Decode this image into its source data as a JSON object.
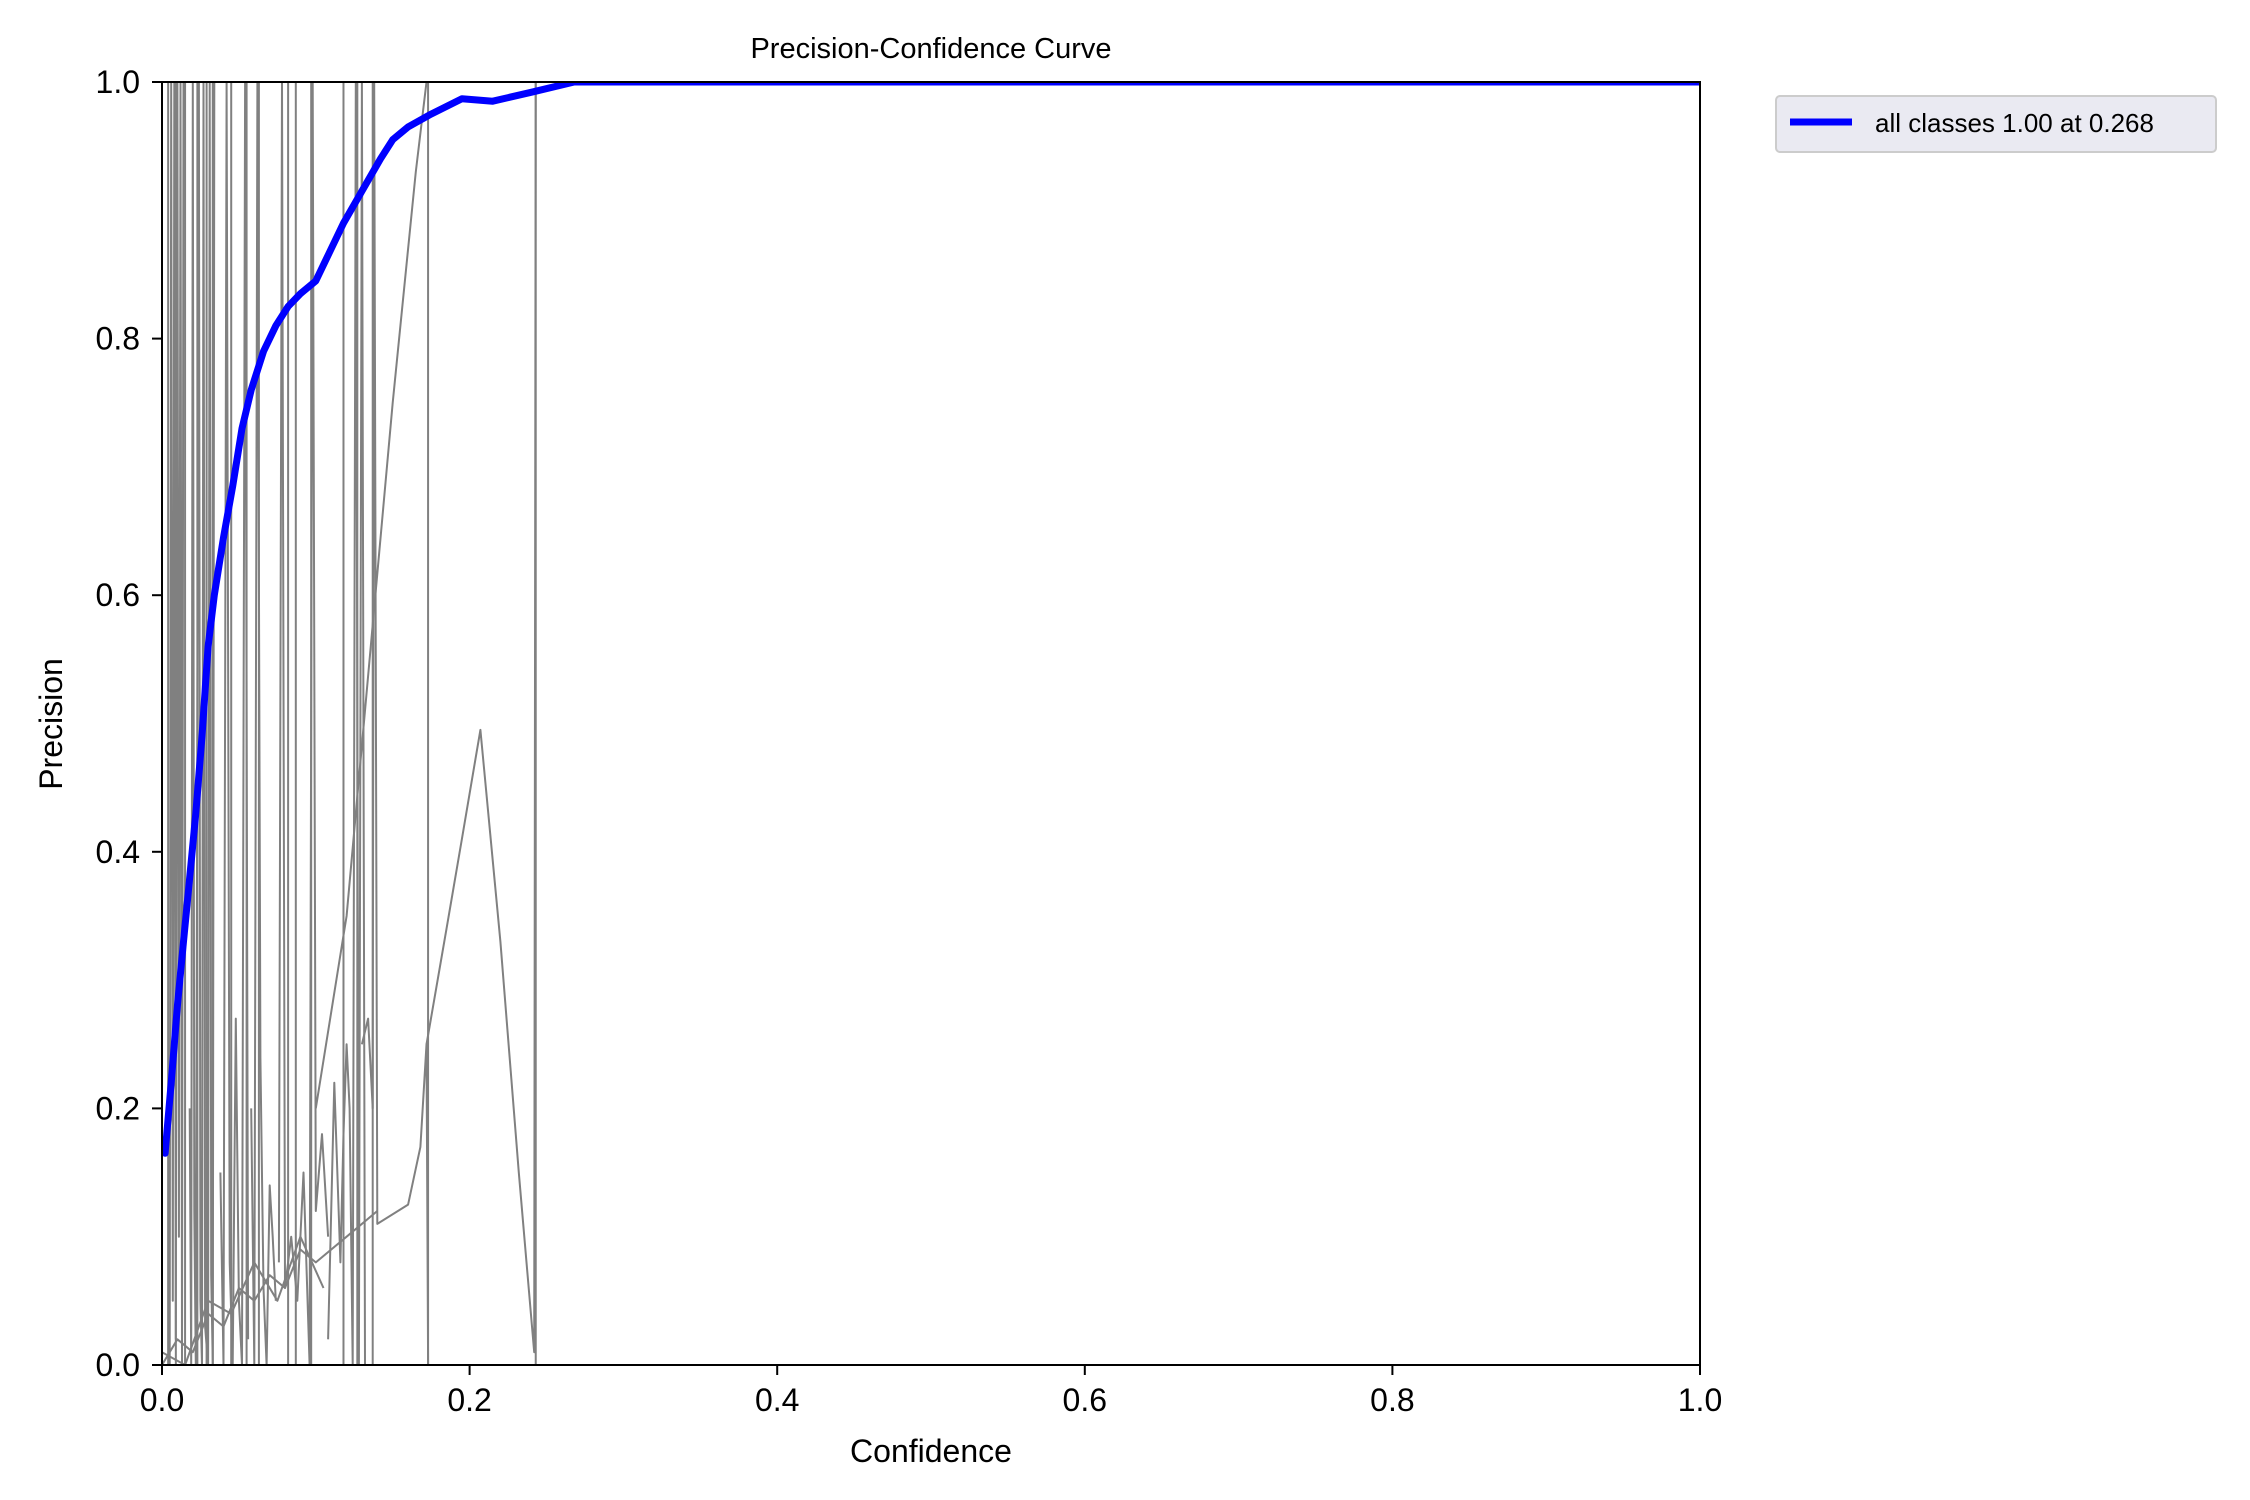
{
  "chart_data": {
    "type": "line",
    "title": "Precision-Confidence Curve",
    "xlabel": "Confidence",
    "ylabel": "Precision",
    "xlim": [
      0.0,
      1.0
    ],
    "ylim": [
      0.0,
      1.0
    ],
    "xticks": [
      "0.0",
      "0.2",
      "0.4",
      "0.6",
      "0.8",
      "1.0"
    ],
    "yticks": [
      "0.0",
      "0.2",
      "0.4",
      "0.6",
      "0.8",
      "1.0"
    ],
    "grid": false,
    "legend_position": "outside-top-right",
    "colors": {
      "all_classes": "#0000ff",
      "per_class": "#808080"
    },
    "series": [
      {
        "name": "all classes 1.00 at 0.268",
        "color": "#0000ff",
        "x": [
          0.002,
          0.006,
          0.01,
          0.014,
          0.018,
          0.022,
          0.026,
          0.03,
          0.034,
          0.04,
          0.046,
          0.052,
          0.058,
          0.066,
          0.074,
          0.082,
          0.09,
          0.1,
          0.108,
          0.118,
          0.13,
          0.142,
          0.15,
          0.16,
          0.175,
          0.195,
          0.215,
          0.24,
          0.268,
          0.4,
          0.6,
          0.8,
          1.0
        ],
        "y": [
          0.165,
          0.22,
          0.28,
          0.33,
          0.38,
          0.43,
          0.49,
          0.56,
          0.6,
          0.645,
          0.685,
          0.73,
          0.76,
          0.79,
          0.81,
          0.825,
          0.835,
          0.845,
          0.865,
          0.89,
          0.915,
          0.94,
          0.955,
          0.965,
          0.975,
          0.987,
          0.985,
          0.992,
          1.0,
          1.0,
          1.0,
          1.0,
          1.0
        ]
      },
      {
        "name": "",
        "color": "#808080",
        "x": [
          0.005,
          0.006,
          0.007,
          0.008,
          0.009,
          0.01,
          0.011,
          0.012,
          0.013,
          0.014
        ],
        "y": [
          0.0,
          1.0,
          0.05,
          1.0,
          0.02,
          1.0,
          0.1,
          1.0,
          0.0,
          1.0
        ]
      },
      {
        "name": "",
        "color": "#808080",
        "x": [
          0.018,
          0.019,
          0.02,
          0.021,
          0.022,
          0.024,
          0.025,
          0.026,
          0.027,
          0.028,
          0.03,
          0.031,
          0.032,
          0.033,
          0.034
        ],
        "y": [
          0.2,
          0.0,
          1.0,
          0.12,
          0.0,
          1.0,
          0.05,
          0.0,
          1.0,
          0.03,
          0.0,
          1.0,
          0.07,
          0.0,
          1.0
        ]
      },
      {
        "name": "",
        "color": "#808080",
        "x": [
          0.038,
          0.04,
          0.042,
          0.044,
          0.046,
          0.048,
          0.05,
          0.052,
          0.054,
          0.056
        ],
        "y": [
          0.15,
          0.0,
          1.0,
          0.08,
          0.0,
          0.27,
          0.05,
          0.0,
          1.0,
          0.02
        ]
      },
      {
        "name": "",
        "color": "#808080",
        "x": [
          0.058,
          0.06,
          0.062,
          0.064,
          0.066,
          0.068,
          0.07,
          0.072,
          0.074
        ],
        "y": [
          0.2,
          0.0,
          1.0,
          0.24,
          0.06,
          0.0,
          0.14,
          0.1,
          0.05
        ]
      },
      {
        "name": "",
        "color": "#808080",
        "x": [
          0.076,
          0.078,
          0.08,
          0.084,
          0.088,
          0.092,
          0.096,
          0.098,
          0.1,
          0.104,
          0.108
        ],
        "y": [
          0.08,
          1.0,
          0.06,
          0.1,
          0.05,
          0.15,
          0.0,
          1.0,
          0.12,
          0.18,
          0.1
        ]
      },
      {
        "name": "",
        "color": "#808080",
        "x": [
          0.108,
          0.112,
          0.116,
          0.118,
          0.12,
          0.122,
          0.124,
          0.126,
          0.128,
          0.13,
          0.132
        ],
        "y": [
          0.02,
          0.22,
          0.08,
          0.18,
          0.25,
          0.2,
          0.0,
          1.0,
          0.0,
          1.0,
          0.0
        ]
      },
      {
        "name": "",
        "color": "#808080",
        "x": [
          0.13,
          0.134,
          0.137,
          0.138,
          0.14,
          0.16,
          0.168,
          0.172,
          0.173
        ],
        "y": [
          0.25,
          0.27,
          0.2,
          1.0,
          0.11,
          0.125,
          0.17,
          0.25,
          0.0
        ]
      },
      {
        "name": "",
        "color": "#808080",
        "x": [
          0.1,
          0.12,
          0.135,
          0.15,
          0.165,
          0.172
        ],
        "y": [
          0.2,
          0.35,
          0.55,
          0.75,
          0.93,
          1.0
        ]
      },
      {
        "name": "",
        "color": "#808080",
        "x": [
          0.172,
          0.185,
          0.195,
          0.207,
          0.22,
          0.232,
          0.242,
          0.243
        ],
        "y": [
          0.25,
          0.34,
          0.41,
          0.495,
          0.33,
          0.15,
          0.01,
          1.0
        ]
      },
      {
        "name": "",
        "color": "#808080",
        "x": [
          0.0,
          0.01,
          0.02,
          0.03,
          0.04,
          0.05,
          0.06,
          0.07,
          0.08,
          0.09,
          0.1,
          0.12,
          0.14
        ],
        "y": [
          0.0,
          0.02,
          0.01,
          0.04,
          0.03,
          0.06,
          0.05,
          0.07,
          0.06,
          0.09,
          0.08,
          0.1,
          0.12
        ]
      },
      {
        "name": "",
        "color": "#808080",
        "x": [
          0.0,
          0.015,
          0.03,
          0.045,
          0.06,
          0.075,
          0.09,
          0.105
        ],
        "y": [
          0.01,
          0.0,
          0.05,
          0.04,
          0.08,
          0.05,
          0.1,
          0.06
        ]
      }
    ],
    "vlines": [
      0.004,
      0.009,
      0.015,
      0.023,
      0.029,
      0.033,
      0.045,
      0.055,
      0.063,
      0.082,
      0.087,
      0.097,
      0.118,
      0.127,
      0.137,
      0.173,
      0.243
    ]
  }
}
